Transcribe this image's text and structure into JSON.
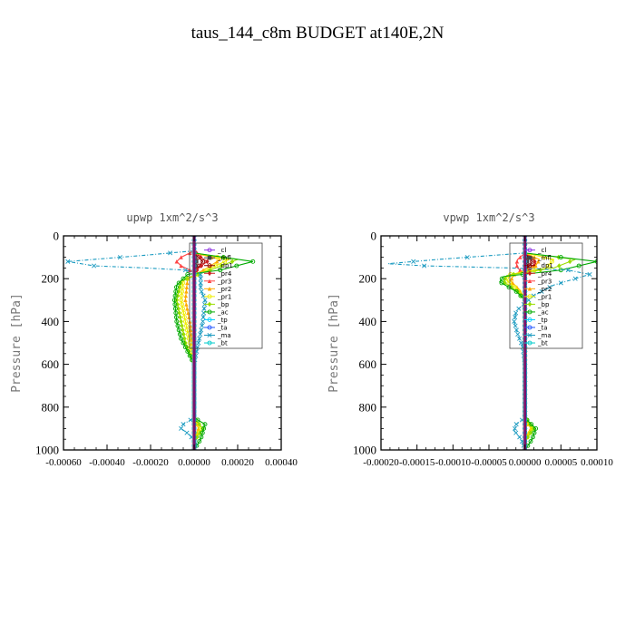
{
  "figure": {
    "title": "taus_144_c8m  BUDGET at140E,2N"
  },
  "chart_data": [
    {
      "type": "line",
      "title": "upwp   1xm^2/s^3",
      "ylabel": "Pressure [hPa]",
      "xlim": [
        -0.0006,
        0.0004
      ],
      "ylim": [
        1000,
        0
      ],
      "y_inverted": true,
      "xticks": [
        -0.0006,
        -0.0004,
        -0.0002,
        0.0,
        0.0002,
        0.0004
      ],
      "xtick_labels": [
        "-0.00060",
        "-0.00040",
        "-0.00020",
        "0.00000",
        "0.00020",
        "0.00040"
      ],
      "yticks": [
        0,
        200,
        400,
        600,
        800,
        1000
      ],
      "ytick_labels": [
        "0",
        "200",
        "400",
        "600",
        "800",
        "1000"
      ],
      "legend_position": "top-right",
      "grid": false,
      "series": [
        {
          "name": "_cl",
          "color": "#8a2be2",
          "marker": "circle",
          "points": [
            [
              0,
              0
            ],
            [
              0,
              1000
            ]
          ]
        },
        {
          "name": "_mfl",
          "color": "#444444",
          "marker": "square",
          "points": [
            [
              0,
              80
            ],
            [
              1e-05,
              120
            ],
            [
              0,
              170
            ],
            [
              0,
              300
            ],
            [
              0,
              1000
            ]
          ]
        },
        {
          "name": "_dp1",
          "color": "#8b0000",
          "marker": "circle",
          "points": [
            [
              0,
              80
            ],
            [
              4e-05,
              120
            ],
            [
              0,
              170
            ],
            [
              0,
              1000
            ]
          ]
        },
        {
          "name": "_pr4",
          "color": "#cc2222",
          "marker": "diamond",
          "points": [
            [
              0,
              70
            ],
            [
              3e-05,
              100
            ],
            [
              6e-05,
              120
            ],
            [
              2e-05,
              150
            ],
            [
              0,
              180
            ],
            [
              0,
              1000
            ]
          ]
        },
        {
          "name": "_pr3",
          "color": "#ff4444",
          "marker": "triangle",
          "points": [
            [
              0,
              70
            ],
            [
              -6e-05,
              100
            ],
            [
              -8e-05,
              120
            ],
            [
              -6e-05,
              140
            ],
            [
              0,
              170
            ],
            [
              0,
              1000
            ]
          ]
        },
        {
          "name": "_pr2",
          "color": "#ffaa00",
          "marker": "triangle",
          "points": [
            [
              0,
              80
            ],
            [
              0.00012,
              110
            ],
            [
              6e-05,
              150
            ],
            [
              -3e-05,
              200
            ],
            [
              -4e-05,
              300
            ],
            [
              -2e-05,
              400
            ],
            [
              0,
              600
            ],
            [
              0,
              850
            ],
            [
              2e-05,
              900
            ],
            [
              0,
              960
            ],
            [
              0,
              1000
            ]
          ]
        },
        {
          "name": "_pr1",
          "color": "#eeee00",
          "marker": "circle",
          "points": [
            [
              0,
              80
            ],
            [
              0.00016,
              110
            ],
            [
              8e-05,
              150
            ],
            [
              -5e-05,
              210
            ],
            [
              -6e-05,
              300
            ],
            [
              -4e-05,
              400
            ],
            [
              -2e-05,
              500
            ],
            [
              0,
              600
            ],
            [
              0,
              850
            ],
            [
              3e-05,
              900
            ],
            [
              0,
              960
            ],
            [
              0,
              1000
            ]
          ]
        },
        {
          "name": "_bp",
          "color": "#99dd00",
          "marker": "diamond",
          "points": [
            [
              0,
              80
            ],
            [
              0.0002,
              110
            ],
            [
              0.0001,
              150
            ],
            [
              -6e-05,
              210
            ],
            [
              -8e-05,
              300
            ],
            [
              -6e-05,
              400
            ],
            [
              -4e-05,
              500
            ],
            [
              0,
              600
            ],
            [
              0,
              850
            ],
            [
              4e-05,
              900
            ],
            [
              0,
              960
            ],
            [
              0,
              1000
            ]
          ]
        },
        {
          "name": "_ac",
          "color": "#00aa00",
          "marker": "circle",
          "points": [
            [
              0,
              80
            ],
            [
              0.00027,
              120
            ],
            [
              0.00012,
              160
            ],
            [
              -3e-05,
              180
            ],
            [
              -8e-05,
              230
            ],
            [
              -9e-05,
              300
            ],
            [
              -8e-05,
              400
            ],
            [
              -6e-05,
              480
            ],
            [
              -2e-05,
              560
            ],
            [
              0,
              600
            ],
            [
              0,
              850
            ],
            [
              5e-05,
              880
            ],
            [
              3e-05,
              950
            ],
            [
              0,
              1000
            ]
          ]
        },
        {
          "name": "_tp",
          "color": "#00ccff",
          "marker": "circle",
          "points": [
            [
              0,
              0
            ],
            [
              0,
              1000
            ]
          ]
        },
        {
          "name": "_ta",
          "color": "#2255ff",
          "marker": "circle",
          "points": [
            [
              0,
              0
            ],
            [
              0,
              1000
            ]
          ]
        },
        {
          "name": "_ma",
          "color": "#1a9ac0",
          "marker": "x",
          "points": [
            [
              0,
              70
            ],
            [
              -0.00022,
              90
            ],
            [
              -0.00058,
              120
            ],
            [
              -0.00046,
              140
            ],
            [
              -0.00022,
              150
            ],
            [
              -4e-05,
              160
            ],
            [
              3e-05,
              180
            ],
            [
              3e-05,
              250
            ],
            [
              5e-05,
              300
            ],
            [
              4e-05,
              400
            ],
            [
              2e-05,
              500
            ],
            [
              0,
              600
            ],
            [
              0,
              850
            ],
            [
              -5e-05,
              880
            ],
            [
              -6e-05,
              900
            ],
            [
              -2e-05,
              930
            ],
            [
              1e-05,
              970
            ],
            [
              0,
              1000
            ]
          ]
        },
        {
          "name": "_bt",
          "color": "#00cccc",
          "marker": "circle",
          "points": [
            [
              0,
              0
            ],
            [
              0,
              1000
            ]
          ]
        }
      ]
    },
    {
      "type": "line",
      "title": "vpwp   1xm^2/s^3",
      "ylabel": "Pressure [hPa]",
      "xlim": [
        -0.0002,
        0.0001
      ],
      "ylim": [
        1000,
        0
      ],
      "y_inverted": true,
      "xticks": [
        -0.0002,
        -0.00015,
        -0.0001,
        -5e-05,
        0.0,
        5e-05,
        0.0001
      ],
      "xtick_labels": [
        "-0.00020",
        "-0.00015",
        "-0.00010",
        "-0.00005",
        "0.00000",
        "0.00005",
        "0.00010"
      ],
      "yticks": [
        0,
        200,
        400,
        600,
        800,
        1000
      ],
      "ytick_labels": [
        "0",
        "200",
        "400",
        "600",
        "800",
        "1000"
      ],
      "legend_position": "top-right",
      "grid": false,
      "series": [
        {
          "name": "_cl",
          "color": "#8a2be2",
          "marker": "circle",
          "points": [
            [
              0,
              0
            ],
            [
              0,
              1000
            ]
          ]
        },
        {
          "name": "_mfl",
          "color": "#444444",
          "marker": "square",
          "points": [
            [
              0,
              80
            ],
            [
              3e-06,
              120
            ],
            [
              0,
              170
            ],
            [
              0,
              1000
            ]
          ]
        },
        {
          "name": "_dp1",
          "color": "#8b0000",
          "marker": "circle",
          "points": [
            [
              0,
              80
            ],
            [
              1e-05,
              120
            ],
            [
              0,
              170
            ],
            [
              0,
              1000
            ]
          ]
        },
        {
          "name": "_pr4",
          "color": "#cc2222",
          "marker": "diamond",
          "points": [
            [
              0,
              80
            ],
            [
              1.2e-05,
              110
            ],
            [
              1.5e-05,
              130
            ],
            [
              1e-05,
              150
            ],
            [
              0,
              180
            ],
            [
              0,
              1000
            ]
          ]
        },
        {
          "name": "_pr3",
          "color": "#ff4444",
          "marker": "triangle",
          "points": [
            [
              0,
              80
            ],
            [
              -1e-05,
              110
            ],
            [
              -1.2e-05,
              130
            ],
            [
              -1e-05,
              150
            ],
            [
              0,
              180
            ],
            [
              0,
              1000
            ]
          ]
        },
        {
          "name": "_pr2",
          "color": "#ffaa00",
          "marker": "triangle",
          "points": [
            [
              0,
              80
            ],
            [
              2e-05,
              110
            ],
            [
              1.5e-05,
              140
            ],
            [
              -1.5e-05,
              180
            ],
            [
              -2e-05,
              210
            ],
            [
              -8e-06,
              250
            ],
            [
              0,
              300
            ],
            [
              0,
              850
            ],
            [
              8e-06,
              900
            ],
            [
              0,
              960
            ],
            [
              0,
              1000
            ]
          ]
        },
        {
          "name": "_pr1",
          "color": "#eeee00",
          "marker": "circle",
          "points": [
            [
              0,
              80
            ],
            [
              4e-05,
              110
            ],
            [
              3e-05,
              150
            ],
            [
              -2e-05,
              180
            ],
            [
              -2.5e-05,
              210
            ],
            [
              -1e-05,
              250
            ],
            [
              0,
              300
            ],
            [
              0,
              850
            ],
            [
              1e-05,
              900
            ],
            [
              0,
              960
            ],
            [
              0,
              1000
            ]
          ]
        },
        {
          "name": "_bp",
          "color": "#99dd00",
          "marker": "diamond",
          "points": [
            [
              0,
              80
            ],
            [
              7e-05,
              110
            ],
            [
              4e-05,
              150
            ],
            [
              -2.5e-05,
              185
            ],
            [
              -3e-05,
              215
            ],
            [
              -1e-05,
              260
            ],
            [
              0,
              300
            ],
            [
              0,
              850
            ],
            [
              1.2e-05,
              900
            ],
            [
              0,
              960
            ],
            [
              0,
              1000
            ]
          ]
        },
        {
          "name": "_ac",
          "color": "#00aa00",
          "marker": "circle",
          "points": [
            [
              0,
              80
            ],
            [
              0.0001,
              120
            ],
            [
              5e-05,
              160
            ],
            [
              -3e-05,
              190
            ],
            [
              -3.5e-05,
              215
            ],
            [
              -1.2e-05,
              260
            ],
            [
              0,
              300
            ],
            [
              0,
              850
            ],
            [
              1.5e-05,
              900
            ],
            [
              1e-05,
              950
            ],
            [
              0,
              1000
            ]
          ]
        },
        {
          "name": "_tp",
          "color": "#00ccff",
          "marker": "circle",
          "points": [
            [
              0,
              0
            ],
            [
              0,
              1000
            ]
          ]
        },
        {
          "name": "_ta",
          "color": "#2255ff",
          "marker": "circle",
          "points": [
            [
              0,
              0
            ],
            [
              0,
              1000
            ]
          ]
        },
        {
          "name": "_ma",
          "color": "#1a9ac0",
          "marker": "x",
          "points": [
            [
              0,
              80
            ],
            [
              -0.00012,
              110
            ],
            [
              -0.00019,
              130
            ],
            [
              -0.00014,
              140
            ],
            [
              -2e-05,
              150
            ],
            [
              6e-05,
              160
            ],
            [
              9e-05,
              180
            ],
            [
              4e-05,
              230
            ],
            [
              1.2e-05,
              280
            ],
            [
              -1.2e-05,
              350
            ],
            [
              -1.5e-05,
              400
            ],
            [
              -1e-05,
              460
            ],
            [
              -3e-06,
              520
            ],
            [
              0,
              600
            ],
            [
              0,
              850
            ],
            [
              -1.2e-05,
              880
            ],
            [
              -1.5e-05,
              910
            ],
            [
              -5e-06,
              950
            ],
            [
              0,
              1000
            ]
          ]
        },
        {
          "name": "_bt",
          "color": "#00cccc",
          "marker": "circle",
          "points": [
            [
              0,
              0
            ],
            [
              0,
              1000
            ]
          ]
        }
      ]
    }
  ]
}
